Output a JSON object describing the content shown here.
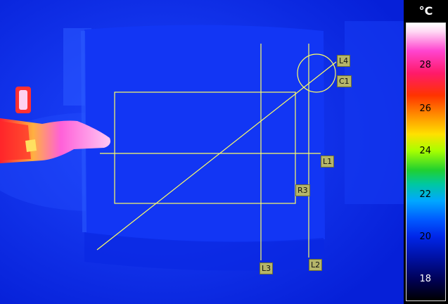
{
  "temperature_scale": {
    "unit": "°C",
    "ticks": [
      "28",
      "26",
      "24",
      "22",
      "20",
      "18"
    ]
  },
  "measurement_tools": {
    "line1": "L1",
    "line2": "L2",
    "line3": "L3",
    "line4": "L4",
    "circle1": "C1",
    "rectangle3": "R3"
  },
  "colors": {
    "overlay": "#ffff66",
    "tag_background": "#b5b56a",
    "scene_background": "#0a22e6"
  }
}
